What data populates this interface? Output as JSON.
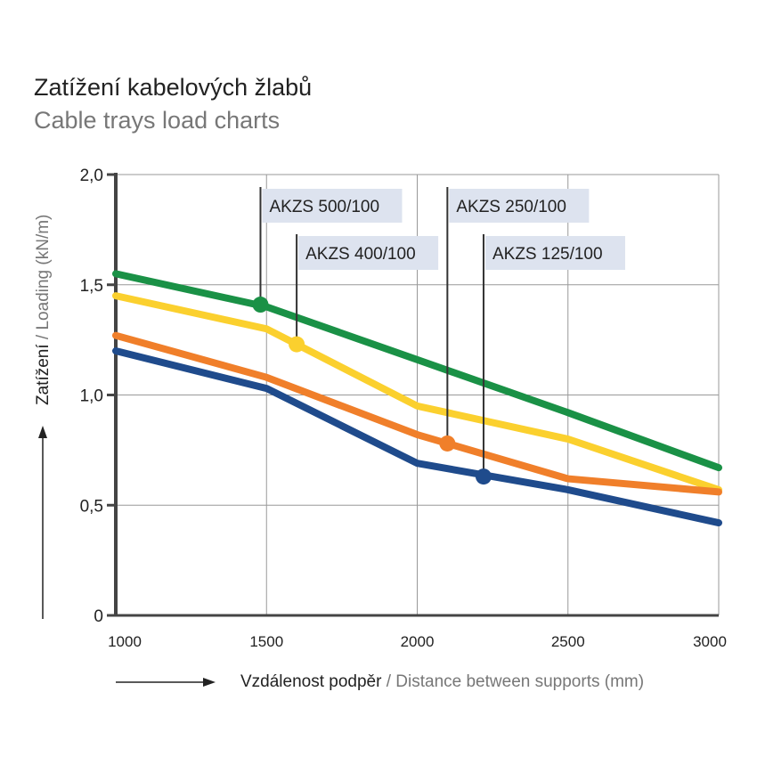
{
  "chart_data": {
    "type": "line",
    "title": "Zatížení kabelových žlabů",
    "subtitle": "Cable trays load charts",
    "ylabel_cz": "Zatížení",
    "ylabel_en": " / Loading (kN/m)",
    "xlabel_cz": "Vzdálenost podpěr",
    "xlabel_en": " / Distance between supports (mm)",
    "xlim": [
      1000,
      3000
    ],
    "ylim": [
      0,
      2
    ],
    "xticks": [
      1000,
      1500,
      2000,
      2500,
      3000
    ],
    "xtick_labels": [
      "1000",
      "1500",
      "2000",
      "2500",
      "3000"
    ],
    "yticks": [
      0,
      0.5,
      1,
      1.5,
      2
    ],
    "ytick_labels": [
      "0",
      "0,5",
      "1,0",
      "1,5",
      "2,0"
    ],
    "grid": true,
    "series": [
      {
        "name": "AKZS 500/100",
        "color": "#1a9146",
        "x": [
          1000,
          1500,
          2000,
          2500,
          3000
        ],
        "y": [
          1.55,
          1.4,
          1.16,
          0.92,
          0.67
        ],
        "marker": [
          1480,
          1.41
        ]
      },
      {
        "name": "AKZS 400/100",
        "color": "#fbd02e",
        "x": [
          1000,
          1500,
          2000,
          2500,
          3000
        ],
        "y": [
          1.45,
          1.3,
          0.95,
          0.8,
          0.57
        ],
        "marker": [
          1600,
          1.23
        ]
      },
      {
        "name": "AKZS 250/100",
        "color": "#f07f2a",
        "x": [
          1000,
          1500,
          2000,
          2500,
          3000
        ],
        "y": [
          1.27,
          1.08,
          0.82,
          0.62,
          0.56
        ],
        "marker": [
          2100,
          0.78
        ]
      },
      {
        "name": "AKZS 125/100",
        "color": "#1f4b8c",
        "x": [
          1000,
          1500,
          2000,
          2500,
          3000
        ],
        "y": [
          1.2,
          1.03,
          0.69,
          0.57,
          0.42
        ],
        "marker": [
          2220,
          0.63
        ]
      }
    ]
  }
}
